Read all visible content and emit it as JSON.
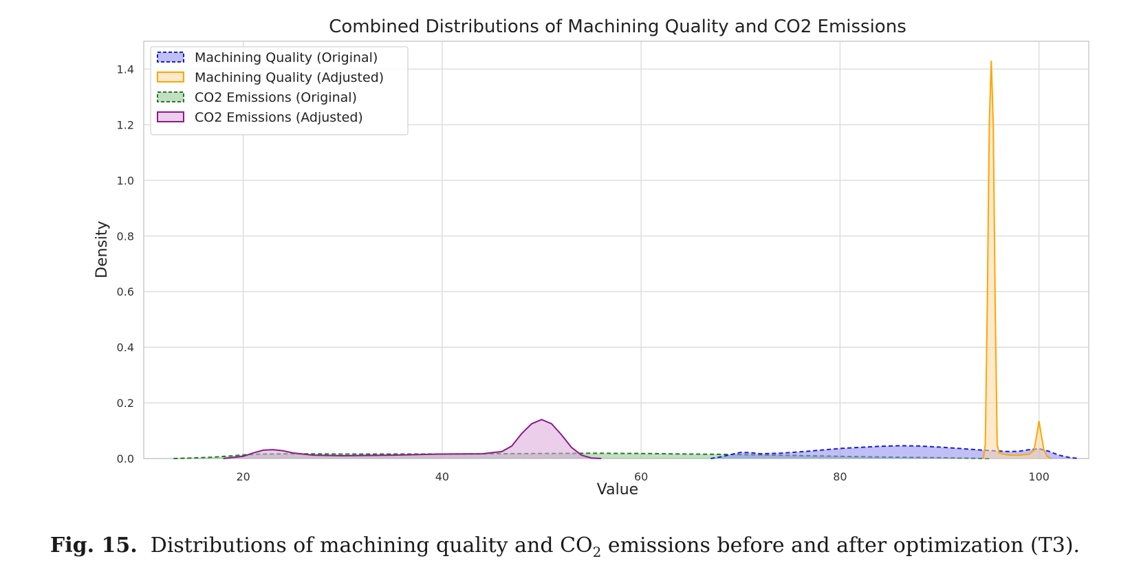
{
  "caption": {
    "label": "Fig. 15.",
    "text_before_sub": "Distributions of machining quality and CO",
    "subscript": "2",
    "text_after_sub": " emissions before and after optimization (T3)."
  },
  "chart_data": {
    "type": "area",
    "title": "Combined Distributions of Machining Quality and CO2 Emissions",
    "xlabel": "Value",
    "ylabel": "Density",
    "xlim": [
      10,
      105
    ],
    "ylim": [
      0,
      1.5
    ],
    "xticks": [
      20,
      40,
      60,
      80,
      100
    ],
    "yticks": [
      0.0,
      0.2,
      0.4,
      0.6,
      0.8,
      1.0,
      1.2,
      1.4
    ],
    "xtick_labels": [
      "20",
      "40",
      "60",
      "80",
      "100"
    ],
    "ytick_labels": [
      "0.0",
      "0.2",
      "0.4",
      "0.6",
      "0.8",
      "1.0",
      "1.2",
      "1.4"
    ],
    "grid": true,
    "legend_position": "top-left",
    "series": [
      {
        "name": "Machining Quality (Original)",
        "line_color": "#1a1adc",
        "fill_color": "#8c8cf0",
        "line_style": "dashed",
        "x": [
          67,
          68,
          69,
          70,
          71,
          72,
          74,
          76,
          78,
          80,
          82,
          84,
          86,
          88,
          90,
          92,
          94,
          96,
          97,
          98,
          99,
          100,
          101,
          102,
          103,
          104
        ],
        "y": [
          0.0,
          0.006,
          0.014,
          0.022,
          0.021,
          0.017,
          0.019,
          0.024,
          0.03,
          0.036,
          0.04,
          0.044,
          0.046,
          0.045,
          0.041,
          0.036,
          0.031,
          0.027,
          0.025,
          0.026,
          0.032,
          0.035,
          0.026,
          0.012,
          0.004,
          0.0
        ]
      },
      {
        "name": "Machining Quality (Adjusted)",
        "line_color": "#ffa500",
        "fill_color": "#fcd9a3",
        "line_style": "solid",
        "x": [
          94.4,
          94.6,
          94.8,
          95.0,
          95.2,
          95.4,
          95.6,
          95.8,
          96.0,
          96.5,
          97,
          98,
          99,
          99.5,
          99.8,
          100.0,
          100.2,
          100.5,
          100.8,
          101.2
        ],
        "y": [
          0.0,
          0.05,
          0.55,
          1.2,
          1.43,
          1.2,
          0.55,
          0.05,
          0.02,
          0.015,
          0.012,
          0.012,
          0.015,
          0.03,
          0.09,
          0.135,
          0.09,
          0.03,
          0.008,
          0.0
        ]
      },
      {
        "name": "CO2 Emissions (Original)",
        "line_color": "#1f7a1f",
        "fill_color": "#8fc48f",
        "line_style": "dashed",
        "x": [
          13,
          15,
          17,
          19,
          20,
          22,
          25,
          30,
          40,
          50,
          55,
          60,
          65,
          70,
          75,
          80,
          85,
          90,
          95
        ],
        "y": [
          0.0,
          0.002,
          0.005,
          0.01,
          0.013,
          0.016,
          0.017,
          0.016,
          0.016,
          0.018,
          0.019,
          0.018,
          0.016,
          0.014,
          0.011,
          0.008,
          0.005,
          0.003,
          0.0
        ]
      },
      {
        "name": "CO2 Emissions (Adjusted)",
        "line_color": "#8b1a8b",
        "fill_color": "#d9a6d9",
        "line_style": "solid",
        "x": [
          18,
          20,
          21,
          22,
          23,
          24,
          25,
          27,
          30,
          35,
          40,
          44,
          46,
          47,
          48,
          49,
          50,
          51,
          52,
          53,
          54,
          55,
          56
        ],
        "y": [
          0.0,
          0.008,
          0.02,
          0.03,
          0.032,
          0.028,
          0.02,
          0.012,
          0.01,
          0.012,
          0.016,
          0.017,
          0.025,
          0.045,
          0.09,
          0.125,
          0.14,
          0.125,
          0.085,
          0.04,
          0.012,
          0.002,
          0.0
        ]
      }
    ]
  }
}
